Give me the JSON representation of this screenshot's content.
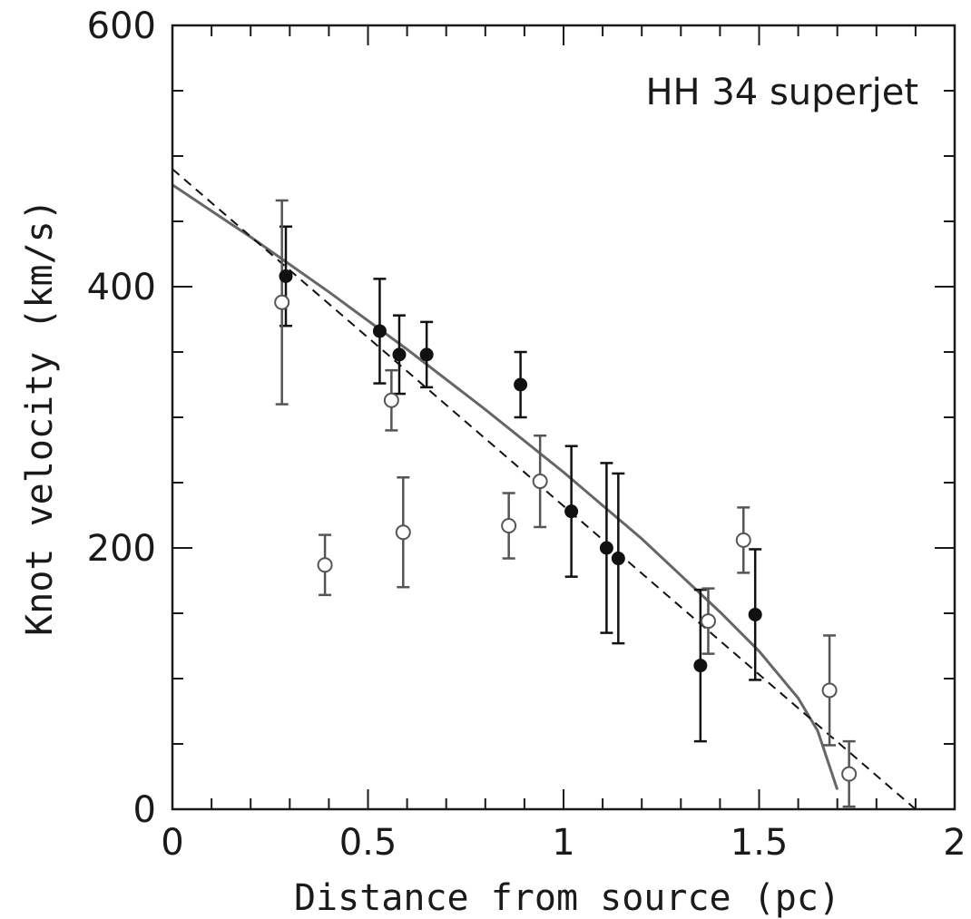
{
  "chart_data": {
    "type": "scatter",
    "title": "",
    "annotation": "HH 34 superjet",
    "xlabel": "Distance from source (pc)",
    "ylabel": "Knot velocity (km/s)",
    "xlim": [
      0,
      2
    ],
    "ylim": [
      0,
      600
    ],
    "x_ticks": [
      {
        "value": 0,
        "label": "0"
      },
      {
        "value": 0.5,
        "label": "0.5"
      },
      {
        "value": 1,
        "label": "1"
      },
      {
        "value": 1.5,
        "label": "1.5"
      },
      {
        "value": 2,
        "label": "2"
      }
    ],
    "y_ticks": [
      {
        "value": 0,
        "label": "0"
      },
      {
        "value": 200,
        "label": "200"
      },
      {
        "value": 400,
        "label": "400"
      },
      {
        "value": 600,
        "label": "600"
      }
    ],
    "x_minor_step": 0.1,
    "y_minor_step": 50,
    "grid": false,
    "series": [
      {
        "marker": "filled-circle",
        "color": "#111111",
        "points": [
          {
            "x": 0.29,
            "y": 408,
            "err": 38
          },
          {
            "x": 0.53,
            "y": 366,
            "err": 40
          },
          {
            "x": 0.58,
            "y": 348,
            "err": 30
          },
          {
            "x": 0.65,
            "y": 348,
            "err": 25
          },
          {
            "x": 0.89,
            "y": 325,
            "err": 25
          },
          {
            "x": 1.02,
            "y": 228,
            "err": 50
          },
          {
            "x": 1.11,
            "y": 200,
            "err": 65
          },
          {
            "x": 1.14,
            "y": 192,
            "err": 65
          },
          {
            "x": 1.35,
            "y": 110,
            "err": 58
          },
          {
            "x": 1.49,
            "y": 149,
            "err": 50
          }
        ]
      },
      {
        "marker": "open-circle",
        "color": "#555555",
        "points": [
          {
            "x": 0.28,
            "y": 388,
            "err": 78
          },
          {
            "x": 0.39,
            "y": 187,
            "err": 23
          },
          {
            "x": 0.56,
            "y": 313,
            "err": 23
          },
          {
            "x": 0.59,
            "y": 212,
            "err": 42
          },
          {
            "x": 0.86,
            "y": 217,
            "err": 25
          },
          {
            "x": 0.94,
            "y": 251,
            "err": 35
          },
          {
            "x": 1.37,
            "y": 144,
            "err": 25
          },
          {
            "x": 1.46,
            "y": 206,
            "err": 25
          },
          {
            "x": 1.68,
            "y": 91,
            "err": 42
          },
          {
            "x": 1.73,
            "y": 27,
            "err": 25
          }
        ]
      }
    ],
    "fits": [
      {
        "style": "solid",
        "color": "#666666",
        "points": [
          [
            0,
            478
          ],
          [
            0.2,
            438
          ],
          [
            0.4,
            396
          ],
          [
            0.6,
            352
          ],
          [
            0.8,
            306
          ],
          [
            1.0,
            258
          ],
          [
            1.2,
            207
          ],
          [
            1.4,
            151
          ],
          [
            1.5,
            121
          ],
          [
            1.6,
            85
          ],
          [
            1.65,
            60
          ],
          [
            1.7,
            15
          ]
        ]
      },
      {
        "style": "dashed",
        "color": "#111111",
        "points": [
          [
            0,
            490
          ],
          [
            1.9,
            0
          ]
        ]
      }
    ]
  }
}
